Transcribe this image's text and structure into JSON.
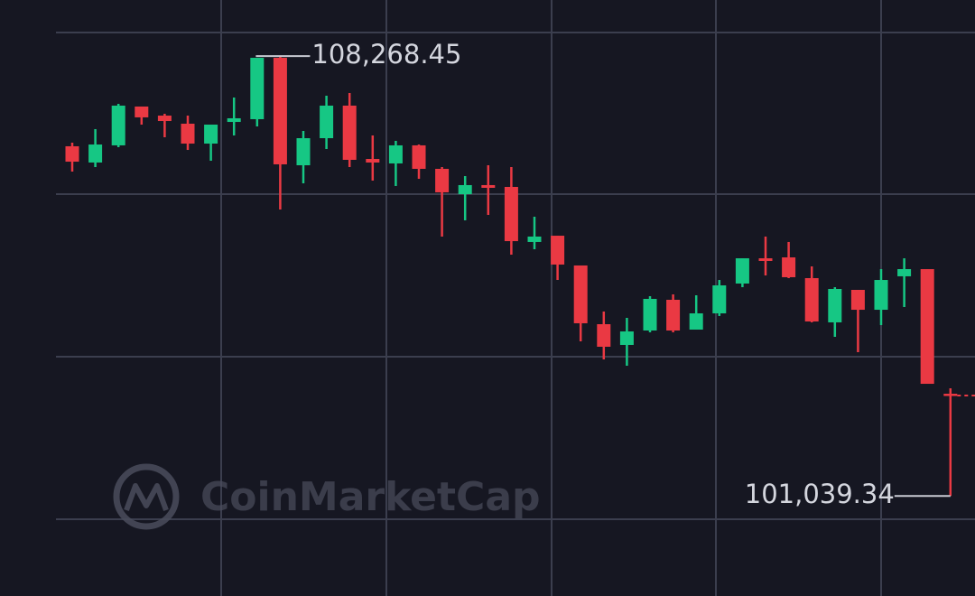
{
  "chart_data": {
    "type": "candlestick",
    "watermark": "CoinMarketCap",
    "up_color": "#16c784",
    "down_color": "#ea3943",
    "ylim": [
      99840,
      109190
    ],
    "open": [
      106786,
      106519,
      106801,
      107439,
      107290,
      107157,
      106830,
      107186,
      107231,
      108240,
      106474,
      106919,
      107454,
      106578,
      106504,
      106801,
      106415,
      105999,
      106148,
      106118,
      105213,
      105316,
      104827,
      103862,
      103521,
      103758,
      104263,
      103773,
      104040,
      104530,
      104945,
      104960,
      104619,
      103892,
      104426,
      104099,
      104649,
      104767,
      102719
    ],
    "high": [
      106845,
      107068,
      107483,
      107439,
      107320,
      107290,
      107142,
      107587,
      108240,
      108268.45,
      107038,
      107617,
      107661,
      106964,
      106875,
      106815,
      106444,
      106296,
      106474,
      106444,
      105628,
      105316,
      104827,
      104070,
      103966,
      104322,
      104352,
      104337,
      104589,
      104945,
      105302,
      105213,
      104812,
      104470,
      104426,
      104767,
      104945,
      104767,
      102808
    ],
    "low": [
      106370,
      106444,
      106771,
      107142,
      106934,
      106726,
      106548,
      106964,
      107112,
      105747,
      106177,
      106741,
      106444,
      106222,
      106133,
      106251,
      105302,
      105569,
      105658,
      105005,
      105094,
      104589,
      103580,
      103283,
      103179,
      103728,
      103728,
      103773,
      103996,
      104470,
      104663,
      104619,
      103892,
      103654,
      103402,
      103847,
      104144,
      102882,
      101039.34
    ],
    "close": [
      106533,
      106815,
      107454,
      107261,
      107201,
      106830,
      107142,
      107246,
      108240,
      106489,
      106919,
      107454,
      106563,
      106519,
      106801,
      106415,
      106029,
      106148,
      106103,
      105227,
      105302,
      104842,
      103877,
      103491,
      103743,
      104278,
      103758,
      104040,
      104500,
      104945,
      104901,
      104634,
      103907,
      104441,
      104099,
      104589,
      104767,
      102882,
      102690
    ],
    "annotations": [
      {
        "text": "108,268.45",
        "value": 108268.45,
        "side": "right"
      },
      {
        "text": "101,039.34",
        "value": 101039.34,
        "side": "left"
      }
    ]
  }
}
